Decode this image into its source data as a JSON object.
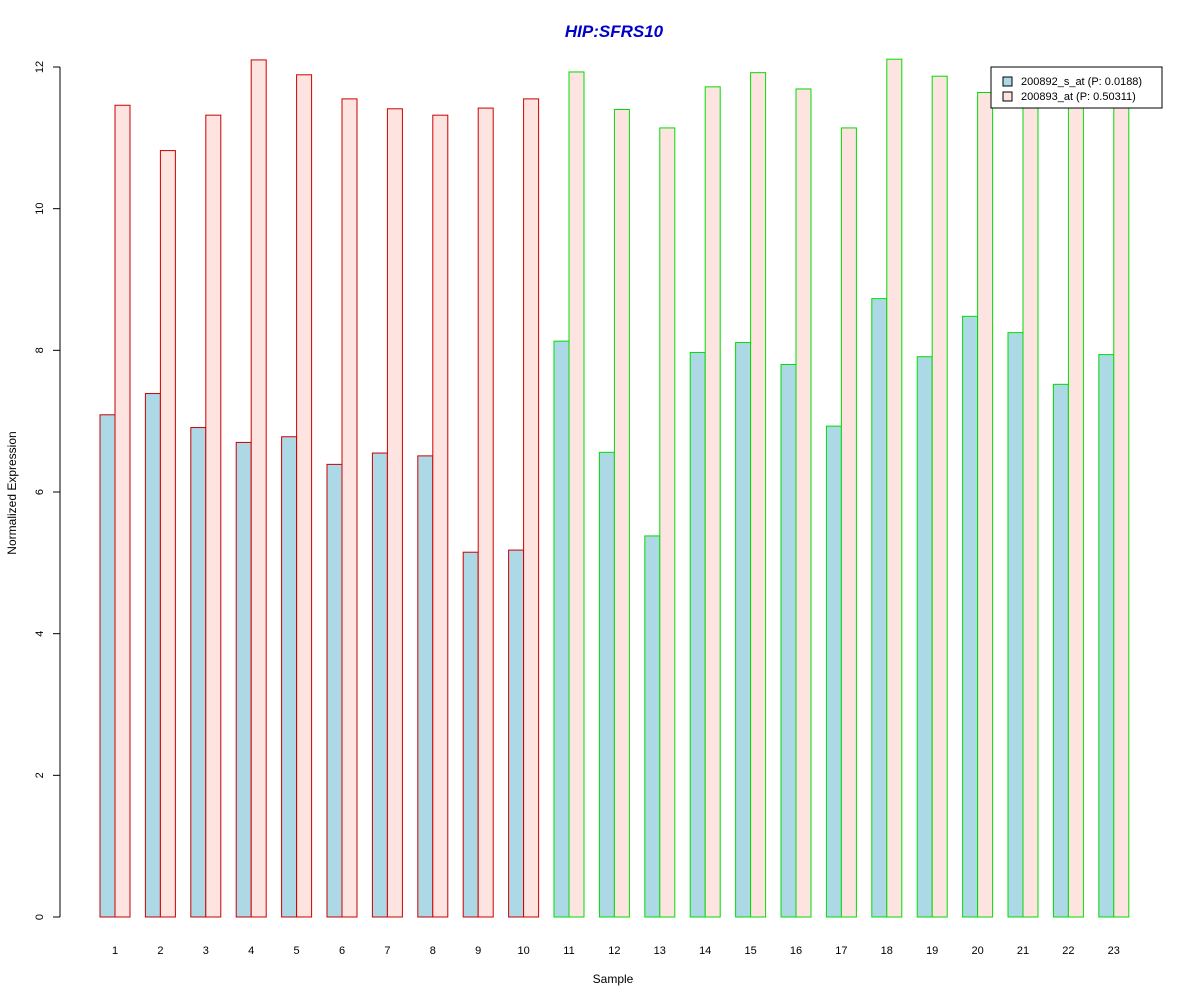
{
  "chart_data": {
    "type": "bar",
    "title": "HIP:SFRS10",
    "xlabel": "Sample",
    "ylabel": "Normalized Expression",
    "ylim": [
      0,
      12
    ],
    "yticks": [
      0,
      2,
      4,
      6,
      8,
      10,
      12
    ],
    "grid": false,
    "legend_position": "top-right",
    "categories": [
      "1",
      "2",
      "3",
      "4",
      "5",
      "6",
      "7",
      "8",
      "9",
      "10",
      "11",
      "12",
      "13",
      "14",
      "15",
      "16",
      "17",
      "18",
      "19",
      "20",
      "21",
      "22",
      "23"
    ],
    "groups": [
      {
        "samples": [
          "1",
          "2",
          "3",
          "4",
          "5",
          "6",
          "7",
          "8",
          "9",
          "10"
        ],
        "border_color": "#cc0000"
      },
      {
        "samples": [
          "11",
          "12",
          "13",
          "14",
          "15",
          "16",
          "17",
          "18",
          "19",
          "20",
          "21",
          "22",
          "23"
        ],
        "border_color": "#00dd00"
      }
    ],
    "series": [
      {
        "name": "200892_s_at (P: 0.0188)",
        "fill": "#add8e6",
        "values": [
          7.09,
          7.39,
          6.91,
          6.7,
          6.78,
          6.39,
          6.55,
          6.51,
          5.15,
          5.18,
          8.13,
          6.56,
          5.38,
          7.97,
          8.11,
          7.8,
          6.93,
          8.73,
          7.91,
          8.48,
          8.25,
          7.52,
          7.94
        ]
      },
      {
        "name": "200893_at (P: 0.50311)",
        "fill": "#fde4e1",
        "values": [
          11.46,
          10.82,
          11.32,
          12.1,
          11.89,
          11.55,
          11.41,
          11.32,
          11.42,
          11.55,
          11.93,
          11.4,
          11.14,
          11.72,
          11.92,
          11.69,
          11.14,
          12.11,
          11.87,
          11.64,
          11.7,
          11.5,
          11.7
        ]
      }
    ]
  }
}
